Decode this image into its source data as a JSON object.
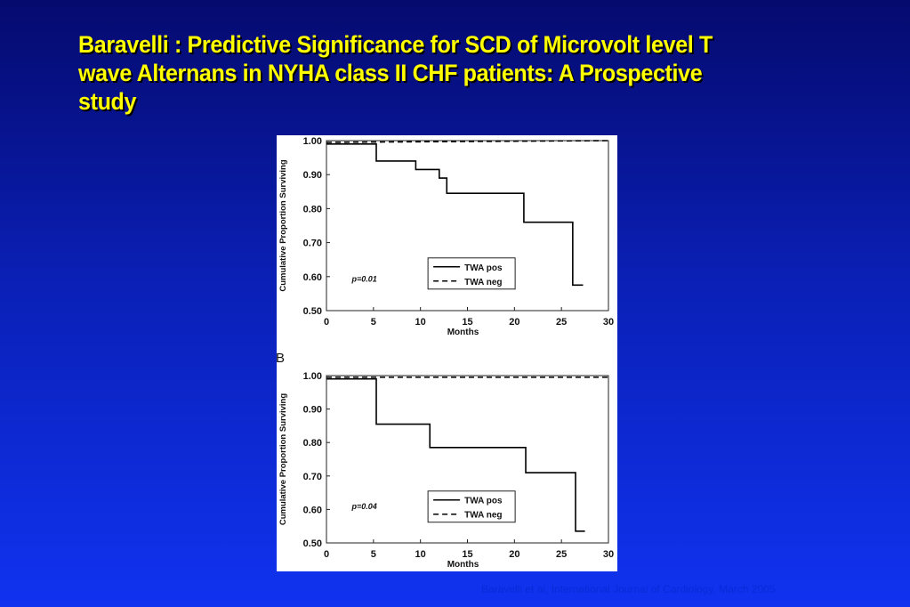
{
  "slide": {
    "title": "Baravelli : Predictive Significance for SCD of Microvolt level T wave Alternans in NYHA class II CHF patients: A Prospective study",
    "citation": "Baravelli et al, International Journal of Cardiology, March 2005"
  },
  "colors": {
    "background_top": "#050a6e",
    "background_bottom": "#1033f0",
    "title": "#ffff00",
    "plot_line": "#000000"
  },
  "chart_data": [
    {
      "type": "line",
      "panel_label": "",
      "xlabel": "Months",
      "ylabel": "Cumulative Proportion Surviving",
      "xlim": [
        0,
        30
      ],
      "ylim": [
        0.5,
        1.0
      ],
      "x_ticks": [
        "0",
        "5",
        "10",
        "15",
        "20",
        "25",
        "30"
      ],
      "y_ticks": [
        "0.50",
        "0.60",
        "0.70",
        "0.80",
        "0.90",
        "1.00"
      ],
      "annotation": "p=0.01",
      "legend_position": "center-right",
      "series": [
        {
          "name": "TWA pos",
          "style": "solid",
          "step": true,
          "x": [
            0,
            5.3,
            9.5,
            12,
            12.8,
            21,
            26.2,
            27.3
          ],
          "y": [
            0.99,
            0.94,
            0.915,
            0.89,
            0.845,
            0.76,
            0.575,
            0.575
          ]
        },
        {
          "name": "TWA neg",
          "style": "dashed",
          "step": false,
          "x": [
            0,
            30
          ],
          "y": [
            0.995,
            1.0
          ]
        }
      ]
    },
    {
      "type": "line",
      "panel_label": "B",
      "xlabel": "Months",
      "ylabel": "Cumulative Proportion Surviving",
      "xlim": [
        0,
        30
      ],
      "ylim": [
        0.5,
        1.0
      ],
      "x_ticks": [
        "0",
        "5",
        "10",
        "15",
        "20",
        "25",
        "30"
      ],
      "y_ticks": [
        "0.50",
        "0.60",
        "0.70",
        "0.80",
        "0.90",
        "1.00"
      ],
      "annotation": "p=0.04",
      "legend_position": "center-right",
      "series": [
        {
          "name": "TWA pos",
          "style": "solid",
          "step": true,
          "x": [
            0,
            5.3,
            11,
            21.2,
            26.5,
            27.5
          ],
          "y": [
            0.99,
            0.855,
            0.785,
            0.71,
            0.535,
            0.535
          ]
        },
        {
          "name": "TWA neg",
          "style": "dashed",
          "step": false,
          "x": [
            0,
            30
          ],
          "y": [
            0.995,
            0.995
          ]
        }
      ]
    }
  ]
}
